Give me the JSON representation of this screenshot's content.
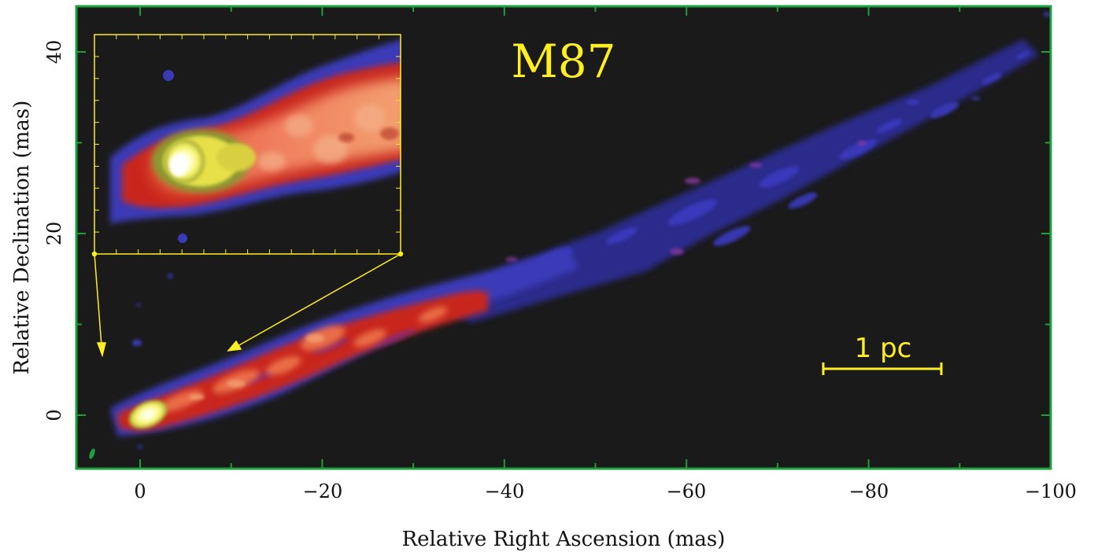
{
  "title": "M87",
  "x_axis": {
    "label": "Relative Right Ascension (mas)",
    "ticks": [
      "0",
      "−20",
      "−40",
      "−60",
      "−80",
      "−100"
    ]
  },
  "y_axis": {
    "label": "Relative Declination (mas)",
    "ticks": [
      "0",
      "20",
      "40"
    ]
  },
  "scale_bar": {
    "label": "1 pc"
  },
  "colors": {
    "frame": "#1e9e3c",
    "background": "#1a1a1a",
    "annotation": "#ffee22",
    "jet_outer": "#3b3ab8",
    "jet_mid": "#d42a1e",
    "jet_inner": "#f0a060",
    "core": "#ffffc8"
  },
  "icons": [
    "arrow-icon",
    "beam-ellipse-icon"
  ]
}
